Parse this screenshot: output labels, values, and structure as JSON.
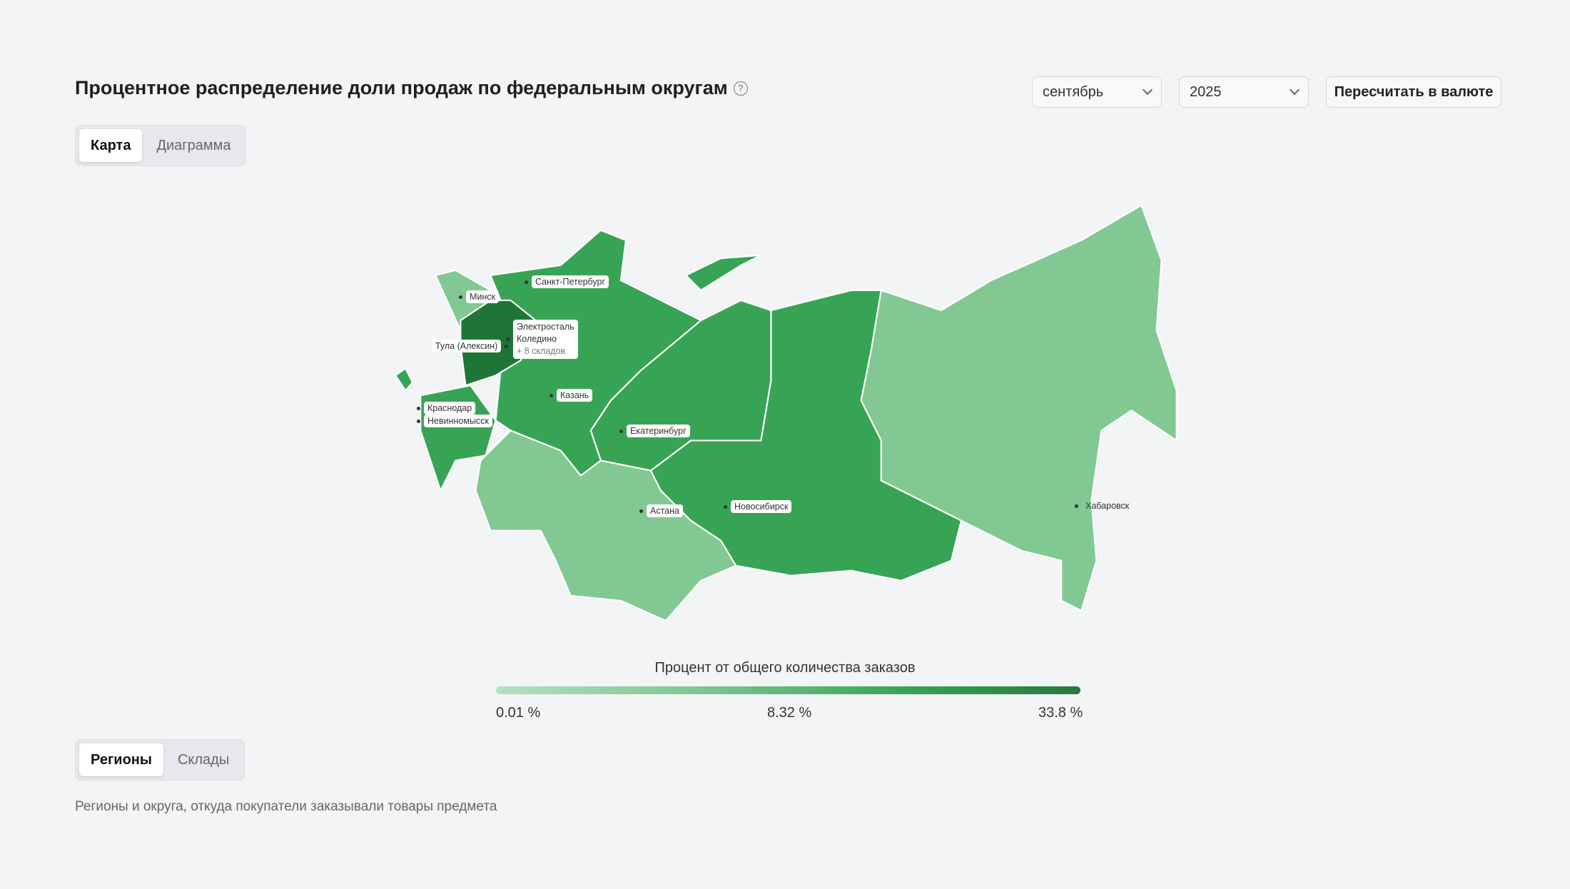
{
  "header": {
    "title": "Процентное распределение доли продаж по федеральным округам",
    "help_icon": "question-circle-icon",
    "month": "сентябрь",
    "year": "2025",
    "recalc_label": "Пересчитать в валюте"
  },
  "view_tabs": [
    {
      "label": "Карта",
      "active": true
    },
    {
      "label": "Диаграмма",
      "active": false
    }
  ],
  "map": {
    "colors": {
      "low": "#82c893",
      "mid": "#37a455",
      "high": "#1f7538"
    },
    "labels": {
      "spb": "Санкт-Петербург",
      "minsk": "Минск",
      "elektrostal": "Электросталь",
      "koledino": "Коледино",
      "more": "+ 8 складов",
      "tula": "Тула (Алексин)",
      "kazan": "Казань",
      "krasnodar": "Краснодар",
      "nevinnomyssk": "Невинномысск",
      "ekb": "Екатеринбург",
      "astana": "Астана",
      "novosibirsk": "Новосибирск",
      "khabarovsk": "Хабаровск"
    }
  },
  "legend": {
    "title": "Процент от общего количества заказов",
    "min": "0.01 %",
    "mid": "8.32 %",
    "max": "33.8 %"
  },
  "list_tabs": [
    {
      "label": "Регионы",
      "active": true
    },
    {
      "label": "Склады",
      "active": false
    }
  ],
  "description": "Регионы и округа, откуда покупатели заказывали товары предмета"
}
